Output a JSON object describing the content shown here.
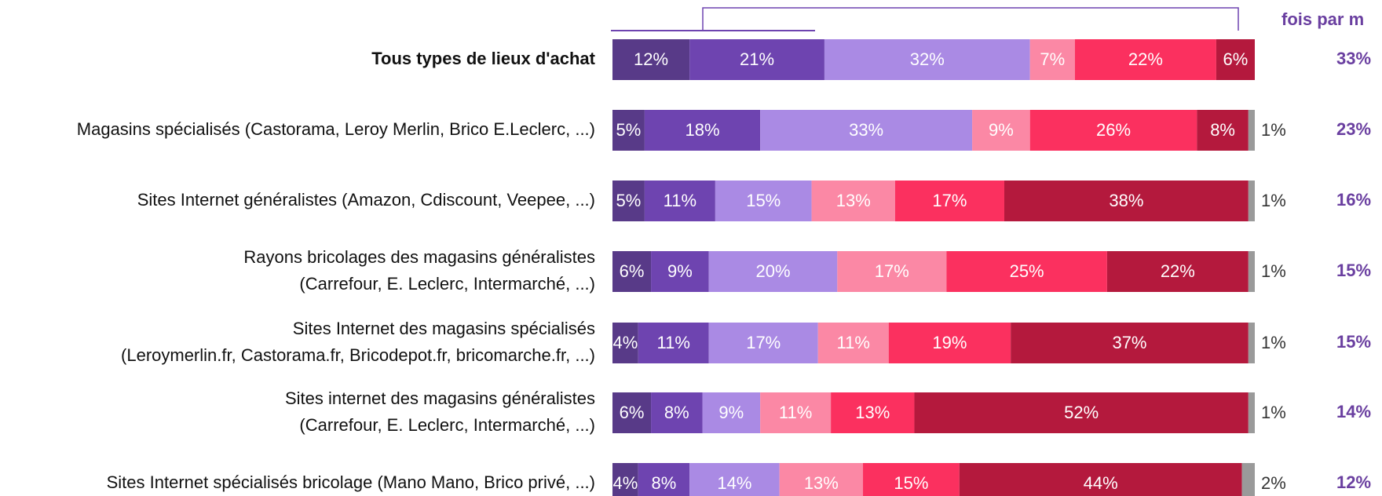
{
  "chart_data": {
    "type": "stacked_barh",
    "header": "fois par m",
    "xlim": [
      0,
      100
    ],
    "colors": [
      "#583a88",
      "#6e44b0",
      "#aa8ae4",
      "#fb88a5",
      "#fb305f",
      "#b4193d",
      "#9a9a9a"
    ],
    "categories": [
      [
        "Tous types de lieux d'achat"
      ],
      [
        "Magasins spécialisés (Castorama, Leroy Merlin, Brico E.Leclerc, ...)"
      ],
      [
        "Sites Internet généralistes (Amazon, Cdiscount, Veepee, ...)"
      ],
      [
        "Rayons bricolages des magasins généralistes",
        "(Carrefour, E. Leclerc, Intermarché, ...)"
      ],
      [
        "Sites Internet des magasins spécialisés",
        "(Leroymerlin.fr, Castorama.fr, Bricodepot.fr, bricomarche.fr, ...)"
      ],
      [
        "Sites internet des magasins généralistes",
        "(Carrefour, E. Leclerc, Intermarché, ...)"
      ],
      [
        "Sites Internet spécialisés bricolage (Mano Mano, Brico privé, ...)"
      ]
    ],
    "values": [
      [
        12,
        21,
        32,
        7,
        22,
        6
      ],
      [
        5,
        18,
        33,
        9,
        26,
        8,
        1
      ],
      [
        5,
        11,
        15,
        13,
        17,
        38,
        1
      ],
      [
        6,
        9,
        20,
        17,
        25,
        22,
        1
      ],
      [
        4,
        11,
        17,
        11,
        19,
        37,
        1
      ],
      [
        6,
        8,
        9,
        11,
        13,
        52,
        1
      ],
      [
        4,
        8,
        14,
        13,
        15,
        44,
        2
      ]
    ],
    "value_labels": [
      [
        "12%",
        "21%",
        "32%",
        "7%",
        "22%",
        "6%"
      ],
      [
        "5%",
        "18%",
        "33%",
        "9%",
        "26%",
        "8%",
        "1%"
      ],
      [
        "5%",
        "11%",
        "15%",
        "13%",
        "17%",
        "38%",
        "1%"
      ],
      [
        "6%",
        "9%",
        "20%",
        "17%",
        "25%",
        "22%",
        "1%"
      ],
      [
        "4%",
        "11%",
        "17%",
        "11%",
        "19%",
        "37%",
        "1%"
      ],
      [
        "6%",
        "8%",
        "9%",
        "11%",
        "13%",
        "52%",
        "1%"
      ],
      [
        "4%",
        "8%",
        "14%",
        "13%",
        "15%",
        "44%",
        "2%"
      ]
    ],
    "totals": [
      33,
      23,
      16,
      15,
      15,
      14,
      12
    ],
    "total_labels": [
      "33%",
      "23%",
      "16%",
      "15%",
      "15%",
      "14%",
      "12%"
    ]
  }
}
